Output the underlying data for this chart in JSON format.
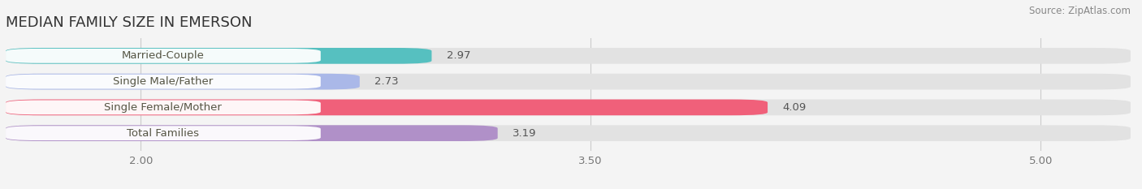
{
  "title": "MEDIAN FAMILY SIZE IN EMERSON",
  "source": "Source: ZipAtlas.com",
  "categories": [
    "Married-Couple",
    "Single Male/Father",
    "Single Female/Mother",
    "Total Families"
  ],
  "values": [
    2.97,
    2.73,
    4.09,
    3.19
  ],
  "bar_colors": [
    "#56c0c0",
    "#aab8e8",
    "#f0607a",
    "#b090c8"
  ],
  "background_color": "#f4f4f4",
  "bar_bg_color": "#e2e2e2",
  "label_bg_color": "#ffffff",
  "xlim": [
    1.55,
    5.3
  ],
  "xstart": 1.55,
  "xticks": [
    2.0,
    3.5,
    5.0
  ],
  "xtick_labels": [
    "2.00",
    "3.50",
    "5.00"
  ],
  "bar_height": 0.62,
  "label_fontsize": 9.5,
  "value_fontsize": 9.5,
  "title_fontsize": 13,
  "source_fontsize": 8.5,
  "title_color": "#333333",
  "label_color": "#555544",
  "value_color": "#555555",
  "source_color": "#888888",
  "grid_color": "#cccccc"
}
